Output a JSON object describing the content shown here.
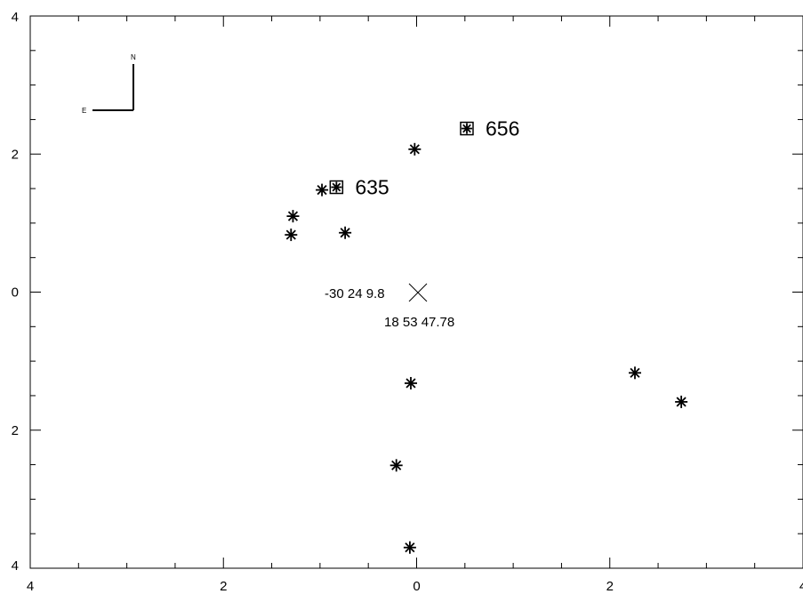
{
  "chart_data": {
    "type": "scatter",
    "xlim": [
      4,
      -4
    ],
    "ylim": [
      -4,
      4
    ],
    "x_ticks": [
      {
        "value": 4,
        "label": "4"
      },
      {
        "value": 2,
        "label": "2"
      },
      {
        "value": 0,
        "label": "0"
      },
      {
        "value": -2,
        "label": "2"
      },
      {
        "value": -4,
        "label": "4"
      }
    ],
    "y_ticks": [
      {
        "value": 4,
        "label": "4"
      },
      {
        "value": 2,
        "label": "2"
      },
      {
        "value": 0,
        "label": "0"
      },
      {
        "value": -2,
        "label": "2"
      },
      {
        "value": -4,
        "label": "4"
      }
    ],
    "grid": false,
    "compass": {
      "north": "N",
      "east": "E"
    },
    "points": [
      {
        "x": -0.52,
        "y": 2.37,
        "marker": "boxed-asterisk",
        "label": "656"
      },
      {
        "x": 0.83,
        "y": 1.52,
        "marker": "boxed-asterisk",
        "label": "635"
      },
      {
        "x": 0.02,
        "y": 2.07,
        "marker": "asterisk",
        "label": ""
      },
      {
        "x": 0.98,
        "y": 1.48,
        "marker": "asterisk",
        "label": ""
      },
      {
        "x": 1.28,
        "y": 1.1,
        "marker": "asterisk",
        "label": ""
      },
      {
        "x": 1.3,
        "y": 0.83,
        "marker": "asterisk",
        "label": ""
      },
      {
        "x": 0.74,
        "y": 0.86,
        "marker": "asterisk",
        "label": ""
      },
      {
        "x": 0.06,
        "y": -1.32,
        "marker": "asterisk",
        "label": ""
      },
      {
        "x": -2.26,
        "y": -1.17,
        "marker": "asterisk",
        "label": ""
      },
      {
        "x": -2.74,
        "y": -1.59,
        "marker": "asterisk",
        "label": ""
      },
      {
        "x": 0.21,
        "y": -2.51,
        "marker": "asterisk",
        "label": ""
      },
      {
        "x": 0.07,
        "y": -3.7,
        "marker": "asterisk",
        "label": ""
      }
    ],
    "center": {
      "x": 0,
      "y": 0,
      "marker": "cross",
      "dec": "-30 24 9.8",
      "ra": "18 53 47.78"
    }
  }
}
